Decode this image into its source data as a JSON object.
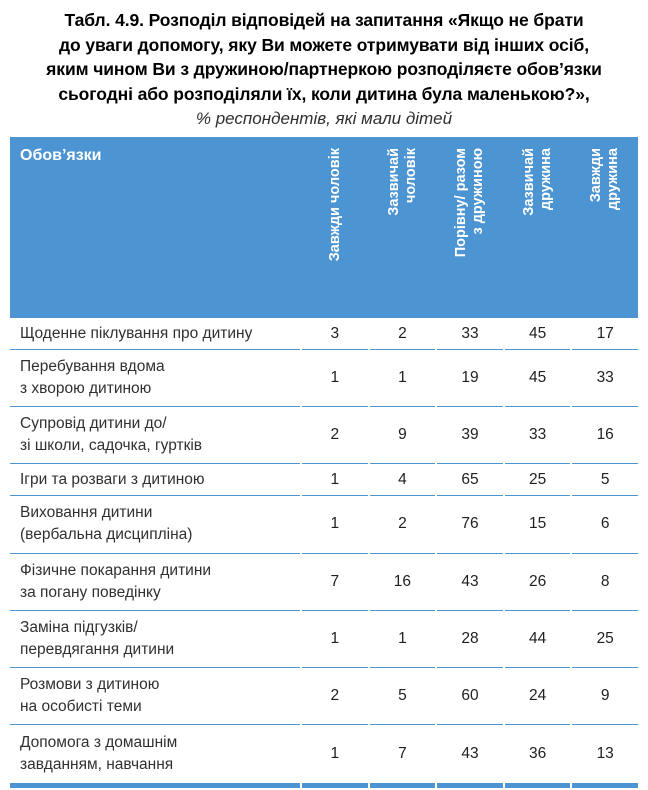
{
  "title": {
    "main": "Табл. 4.9. Розподіл відповідей на запитання «Якщо не брати\nдо уваги допомогу, яку Ви можете отримувати від інших осіб,\nяким чином Ви з дружиною/партнеркою розподіляєте обов’язки\nсьогодні або розподіляли їх, коли дитина була маленькою?»,",
    "subtitle": "% респондентів, які мали дітей"
  },
  "colors": {
    "header_blue": "#4c94d2",
    "separator_blue": "#4c94d2",
    "title_text": "#000000",
    "body_text": "#303030"
  },
  "table": {
    "header": {
      "col0": "Обов’язки",
      "columns": [
        "Завжди чоловік",
        "Зазвичай\nчоловік",
        "Порівну/ разом\nз дружиною",
        "Зазвичай\nдружина",
        "Завжди\nдружина"
      ]
    },
    "rows": [
      {
        "label": "Щоденне піклування про дитину",
        "values": [
          3,
          2,
          33,
          45,
          17
        ]
      },
      {
        "label": "Перебування вдома\nз хворою дитиною",
        "values": [
          1,
          1,
          19,
          45,
          33
        ]
      },
      {
        "label": "Супровід дитини до/\nзі школи, садочка, гуртків",
        "values": [
          2,
          9,
          39,
          33,
          16
        ]
      },
      {
        "label": "Ігри та розваги з дитиною",
        "values": [
          1,
          4,
          65,
          25,
          5
        ]
      },
      {
        "label": "Виховання дитини\n(вербальна дисципліна)",
        "values": [
          1,
          2,
          76,
          15,
          6
        ]
      },
      {
        "label": "Фізичне покарання дитини\nза погану поведінку",
        "values": [
          7,
          16,
          43,
          26,
          8
        ]
      },
      {
        "label": "Заміна підгузків/\nперевдягання дитини",
        "values": [
          1,
          1,
          28,
          44,
          25
        ]
      },
      {
        "label": "Розмови з дитиною\nна особисті теми",
        "values": [
          2,
          5,
          60,
          24,
          9
        ]
      },
      {
        "label": "Допомога з домашнім\nзавданням, навчання",
        "values": [
          1,
          7,
          43,
          36,
          13
        ]
      }
    ]
  }
}
